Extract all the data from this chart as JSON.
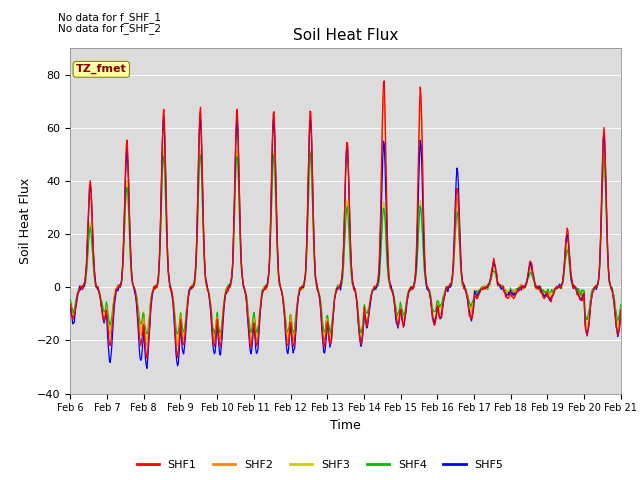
{
  "title": "Soil Heat Flux",
  "xlabel": "Time",
  "ylabel": "Soil Heat Flux",
  "ylim": [
    -40,
    90
  ],
  "yticks": [
    -40,
    -20,
    0,
    20,
    40,
    60,
    80
  ],
  "background_color": "#dcdcdc",
  "series_colors": {
    "SHF1": "#ff0000",
    "SHF2": "#ff8800",
    "SHF3": "#cccc00",
    "SHF4": "#00bb00",
    "SHF5": "#0000ff"
  },
  "annotations": [
    "No data for f_SHF_1",
    "No data for f_SHF_2"
  ],
  "tz_label": "TZ_fmet",
  "tz_box_color": "#ffffaa",
  "tz_text_color": "#880000",
  "x_tick_labels": [
    "Feb 6",
    "Feb 7",
    "Feb 8",
    "Feb 9",
    "Feb 10",
    "Feb 11",
    "Feb 12",
    "Feb 13",
    "Feb 14",
    "Feb 15",
    "Feb 16",
    "Feb 17",
    "Feb 18",
    "Feb 19",
    "Feb 20",
    "Feb 21"
  ],
  "n_points": 720,
  "n_days": 15
}
